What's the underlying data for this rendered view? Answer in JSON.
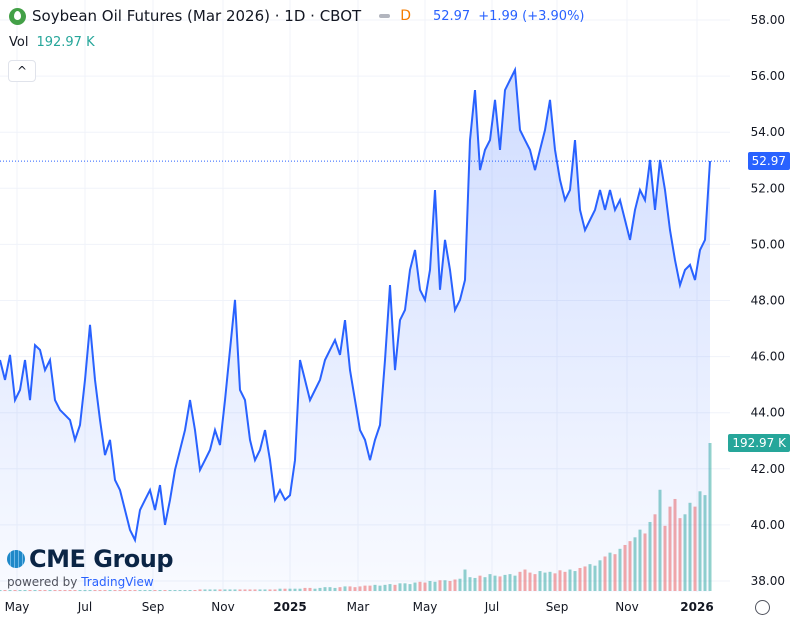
{
  "header": {
    "title": "Soybean Oil Futures (Mar 2026) · 1D · CBOT",
    "flag": "D",
    "last": "52.97",
    "change": "+1.99 (+3.90%)"
  },
  "volume": {
    "label": "Vol",
    "value": "192.97 K"
  },
  "collapse_label": "^",
  "brand": {
    "name": "CME Group",
    "powered": "powered by",
    "tv": "TradingView"
  },
  "colors": {
    "line": "#2962ff",
    "up": "#26a69a",
    "down": "#ef5350"
  },
  "chart_data": {
    "type": "line",
    "title": "Soybean Oil Futures (Mar 2026)",
    "x_start": "2024-04-20",
    "x_step_days": 4.5,
    "ylim": [
      38,
      58
    ],
    "y_ticks": [
      "58.00",
      "56.00",
      "54.00",
      "52.00",
      "50.00",
      "48.00",
      "46.00",
      "44.00",
      "42.00",
      "40.00",
      "38.00"
    ],
    "x_ticks": [
      "May",
      "Jul",
      "Sep",
      "Nov",
      "2025",
      "Mar",
      "May",
      "Jul",
      "Sep",
      "Nov",
      "2026"
    ],
    "last_price_label": "52.97",
    "last_volume_label": "192.97 K",
    "prices": [
      45.88,
      45.17,
      46.06,
      44.45,
      44.81,
      45.88,
      44.45,
      46.41,
      46.24,
      45.52,
      45.88,
      44.45,
      44.1,
      43.92,
      43.74,
      43.03,
      43.56,
      45.17,
      47.13,
      45.17,
      43.74,
      42.49,
      43.03,
      41.6,
      41.24,
      40.53,
      39.82,
      39.46,
      40.53,
      40.89,
      41.24,
      40.53,
      41.42,
      40.0,
      40.89,
      41.96,
      42.67,
      43.38,
      44.45,
      43.38,
      41.96,
      42.31,
      42.67,
      43.38,
      42.85,
      44.45,
      46.24,
      48.02,
      44.81,
      44.45,
      43.03,
      42.31,
      42.67,
      43.38,
      42.31,
      40.89,
      41.24,
      40.89,
      41.06,
      42.31,
      45.88,
      45.17,
      44.45,
      44.81,
      45.17,
      45.88,
      46.24,
      46.59,
      46.06,
      47.3,
      45.52,
      44.45,
      43.38,
      43.03,
      42.31,
      43.03,
      43.56,
      45.88,
      48.55,
      45.52,
      47.3,
      47.66,
      49.09,
      49.8,
      48.38,
      48.02,
      49.09,
      51.94,
      48.38,
      50.16,
      49.09,
      47.66,
      48.02,
      48.73,
      53.72,
      55.5,
      52.65,
      53.37,
      53.72,
      55.15,
      53.37,
      55.5,
      55.86,
      56.22,
      54.08,
      53.72,
      53.37,
      52.65,
      53.37,
      54.08,
      55.15,
      53.37,
      52.3,
      51.58,
      51.94,
      53.72,
      51.23,
      50.51,
      50.87,
      51.23,
      51.94,
      51.23,
      51.94,
      51.23,
      51.58,
      50.87,
      50.16,
      51.23,
      51.94,
      51.58,
      53.01,
      51.23,
      53.01,
      51.94,
      50.51,
      49.44,
      48.55,
      49.09,
      49.27,
      48.73,
      49.8,
      50.16,
      52.97
    ],
    "volumes_k": [
      1,
      1,
      1,
      1,
      1,
      1,
      1,
      1,
      1,
      1,
      1,
      1,
      1,
      1,
      1,
      1,
      1,
      1,
      1,
      1,
      1,
      1,
      1,
      1,
      1,
      1,
      1,
      1,
      1,
      1,
      1,
      1,
      1,
      1,
      1,
      1,
      1,
      1,
      1,
      1,
      2,
      2,
      2,
      2,
      2,
      2,
      2,
      2,
      2,
      2,
      2,
      2,
      2,
      2,
      2,
      2,
      3,
      3,
      3,
      3,
      3,
      4,
      4,
      3,
      4,
      5,
      5,
      4,
      5,
      6,
      6,
      5,
      6,
      7,
      7,
      8,
      7,
      8,
      9,
      8,
      10,
      10,
      9,
      11,
      12,
      11,
      13,
      12,
      14,
      14,
      13,
      15,
      16,
      28,
      18,
      17,
      20,
      18,
      22,
      20,
      19,
      21,
      22,
      20,
      25,
      28,
      24,
      22,
      26,
      24,
      25,
      23,
      27,
      25,
      28,
      26,
      30,
      32,
      35,
      33,
      40,
      45,
      50,
      48,
      55,
      60,
      65,
      70,
      80,
      75,
      90,
      100,
      132,
      85,
      110,
      120,
      95,
      100,
      115,
      110,
      130,
      125,
      192.97
    ]
  }
}
